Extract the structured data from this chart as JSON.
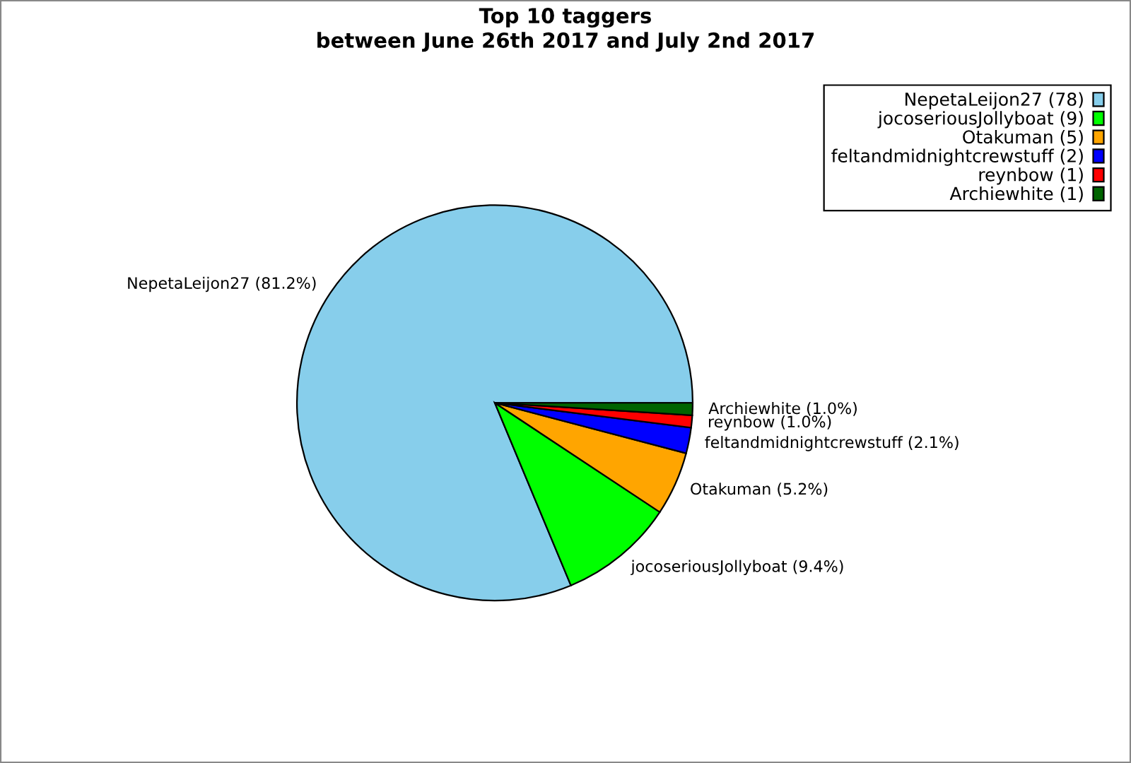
{
  "chart_data": {
    "type": "pie",
    "title": "Top 10 taggers",
    "subtitle": "between June 26th 2017 and July 2nd 2017",
    "categories": [
      "NepetaLeijon27 (78)",
      "jocoseriousJollyboat (9)",
      "Otakuman (5)",
      "feltandmidnightcrewstuff (2)",
      "reynbow (1)",
      "Archiewhite (1)"
    ],
    "values": [
      81.2,
      9.4,
      5.2,
      2.1,
      1.0,
      1.0
    ],
    "value_labels": [
      "NepetaLeijon27 (81.2%)",
      "jocoseriousJollyboat (9.4%)",
      "Otakuman (5.2%)",
      "feltandmidnightcrewstuff (2.1%)",
      "reynbow (1.0%)",
      "Archiewhite (1.0%)"
    ],
    "colors": [
      "#87ceeb",
      "#00ff00",
      "#ffa500",
      "#0000ff",
      "#ff0000",
      "#006400"
    ],
    "legend": "top right"
  }
}
